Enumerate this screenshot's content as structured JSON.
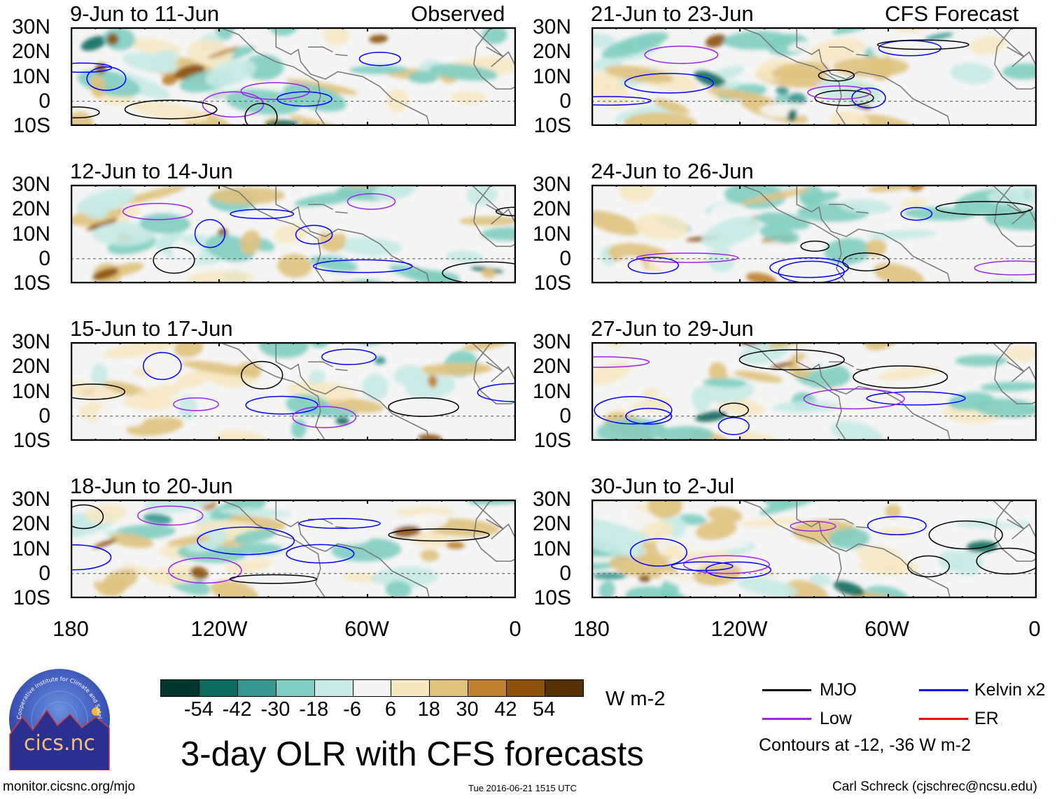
{
  "header": {
    "observed_label": "Observed",
    "forecast_label": "CFS Forecast"
  },
  "lat_labels": [
    "30N",
    "20N",
    "10N",
    "0",
    "10S"
  ],
  "lon_labels": [
    "180",
    "120W",
    "60W",
    "0"
  ],
  "panels_left": [
    {
      "title": "9-Jun to 11-Jun"
    },
    {
      "title": "12-Jun to 14-Jun"
    },
    {
      "title": "15-Jun to 17-Jun"
    },
    {
      "title": "18-Jun to 20-Jun"
    }
  ],
  "panels_right": [
    {
      "title": "21-Jun to 23-Jun"
    },
    {
      "title": "24-Jun to 26-Jun"
    },
    {
      "title": "27-Jun to 29-Jun"
    },
    {
      "title": "30-Jun to 2-Jul"
    }
  ],
  "colorbar": {
    "colors": [
      "#01362f",
      "#0b6b5e",
      "#35978f",
      "#80cdc1",
      "#c7eae5",
      "#f5f5f5",
      "#f6e8c3",
      "#dfc27d",
      "#bf812d",
      "#8c510a",
      "#543005"
    ],
    "labels": [
      "-54",
      "-42",
      "-30",
      "-18",
      "-6",
      "6",
      "18",
      "30",
      "42",
      "54"
    ],
    "units": "W m-2"
  },
  "main_title": "3-day OLR with CFS forecasts",
  "legend": {
    "items": [
      {
        "label": "MJO",
        "color": "#000000"
      },
      {
        "label": "Kelvin x2",
        "color": "#0000ff"
      },
      {
        "label": "Low",
        "color": "#a020f0"
      },
      {
        "label": "ER",
        "color": "#ff0000"
      }
    ],
    "note": "Contours at -12, -36 W m-2"
  },
  "logo": {
    "text": "cics.nc",
    "ring_text": "Cooperative Institute for Climate and Satellites"
  },
  "footer": {
    "url": "monitor.cicsnc.org/mjo",
    "timestamp": "Tue 2016-06-21 1515 UTC",
    "author": "Carl Schreck (cjschrec@ncsu.edu)"
  }
}
